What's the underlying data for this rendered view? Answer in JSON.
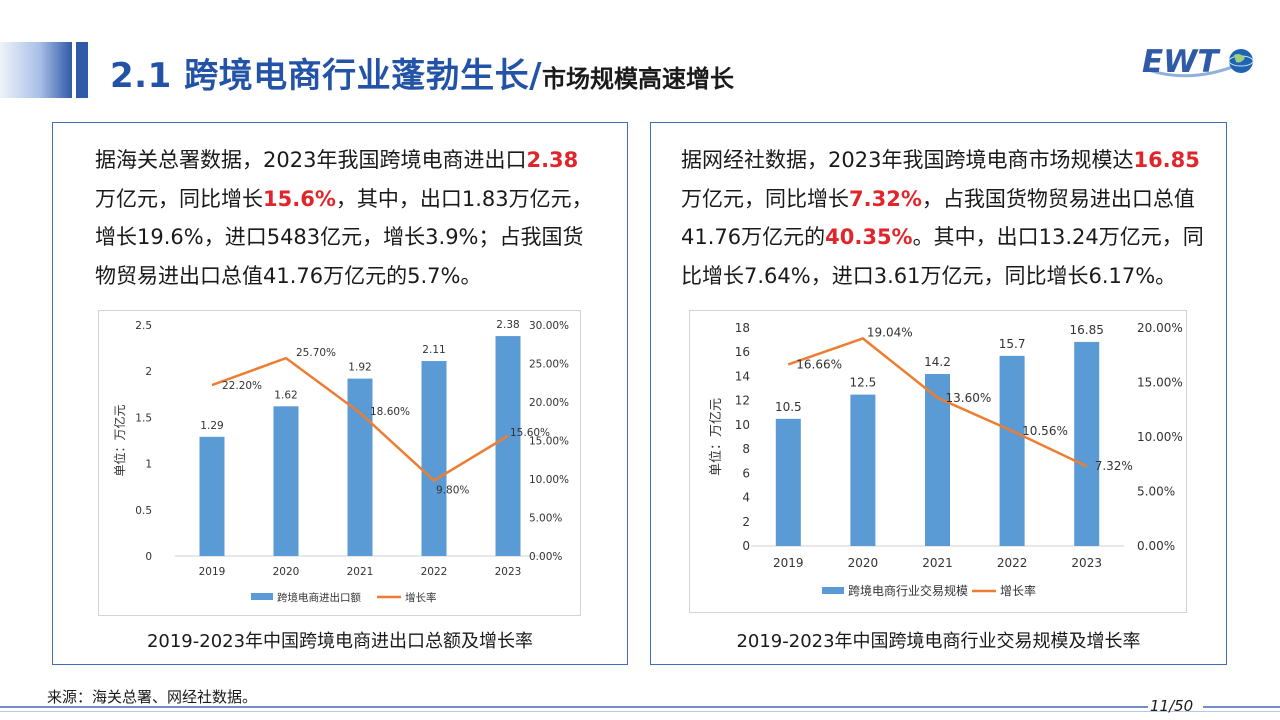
{
  "header": {
    "title_main": "2.1 跨境电商行业蓬勃生长/",
    "title_sub": "市场规模高速增长",
    "logo_text": "EWT"
  },
  "panel_left": {
    "text_parts": [
      {
        "t": "据海关总署数据，2023年我国跨境电商进出口"
      },
      {
        "t": "2.38",
        "hl": true
      },
      {
        "t": "万亿元，同比增长"
      },
      {
        "t": "15.6%",
        "hl": true
      },
      {
        "t": "，其中，出口1.83万亿元，增长19.6%，进口5483亿元，增长3.9%；占我国货物贸易进出口总值41.76万亿元的5.7%。"
      }
    ],
    "caption": "2019-2023年中国跨境电商进出口总额及增长率"
  },
  "panel_right": {
    "text_parts": [
      {
        "t": "据网经社数据，2023年我国跨境电商市场规模达"
      },
      {
        "t": "16.85",
        "hl": true
      },
      {
        "t": "万亿元，同比增长"
      },
      {
        "t": "7.32%",
        "hl": true
      },
      {
        "t": "，占我国货物贸易进出口总值41.76万亿元的"
      },
      {
        "t": "40.35%",
        "hl": true
      },
      {
        "t": "。其中，出口13.24万亿元，同比增长7.64%，进口3.61万亿元，同比增长6.17%。"
      }
    ],
    "caption": "2019-2023年中国跨境电商行业交易规模及增长率"
  },
  "chart_data": [
    {
      "type": "bar",
      "categories": [
        "2019",
        "2020",
        "2021",
        "2022",
        "2023"
      ],
      "series": [
        {
          "name": "跨境电商进出口额",
          "type": "bar",
          "axis": "left",
          "values": [
            1.29,
            1.62,
            1.92,
            2.11,
            2.38
          ],
          "labels": [
            "1.29",
            "1.62",
            "1.92",
            "2.11",
            "2.38"
          ],
          "color": "#5b9bd5"
        },
        {
          "name": "增长率",
          "type": "line",
          "axis": "right",
          "values": [
            22.2,
            25.7,
            18.6,
            9.8,
            15.6
          ],
          "labels": [
            "22.20%",
            "25.70%",
            "18.60%",
            "9.80%",
            "15.60%"
          ],
          "color": "#ed7d31"
        }
      ],
      "ylabel": "单位：万亿元",
      "ylim": [
        0,
        2.5
      ],
      "yticks": [
        "0",
        "0.5",
        "1",
        "1.5",
        "2",
        "2.5"
      ],
      "y2lim": [
        0,
        30
      ],
      "y2ticks": [
        "0.00%",
        "5.00%",
        "10.00%",
        "15.00%",
        "20.00%",
        "25.00%",
        "30.00%"
      ],
      "legend": "bottom",
      "grid": false
    },
    {
      "type": "bar",
      "categories": [
        "2019",
        "2020",
        "2021",
        "2022",
        "2023"
      ],
      "series": [
        {
          "name": "跨境电商行业交易规模",
          "type": "bar",
          "axis": "left",
          "values": [
            10.5,
            12.5,
            14.2,
            15.7,
            16.85
          ],
          "labels": [
            "10.5",
            "12.5",
            "14.2",
            "15.7",
            "16.85"
          ],
          "color": "#5b9bd5"
        },
        {
          "name": "增长率",
          "type": "line",
          "axis": "right",
          "values": [
            16.66,
            19.04,
            13.6,
            10.56,
            7.32
          ],
          "labels": [
            "16.66%",
            "19.04%",
            "13.60%",
            "10.56%",
            "7.32%"
          ],
          "color": "#ed7d31"
        }
      ],
      "ylabel": "单位：万亿元",
      "ylim": [
        0,
        18
      ],
      "yticks": [
        "0",
        "2",
        "4",
        "6",
        "8",
        "10",
        "12",
        "14",
        "16",
        "18"
      ],
      "y2lim": [
        0,
        20
      ],
      "y2ticks": [
        "0.00%",
        "5.00%",
        "10.00%",
        "15.00%",
        "20.00%"
      ],
      "legend": "bottom",
      "grid": false
    }
  ],
  "footer": {
    "source": "来源：海关总署、网经社数据。",
    "page": "11/50"
  }
}
